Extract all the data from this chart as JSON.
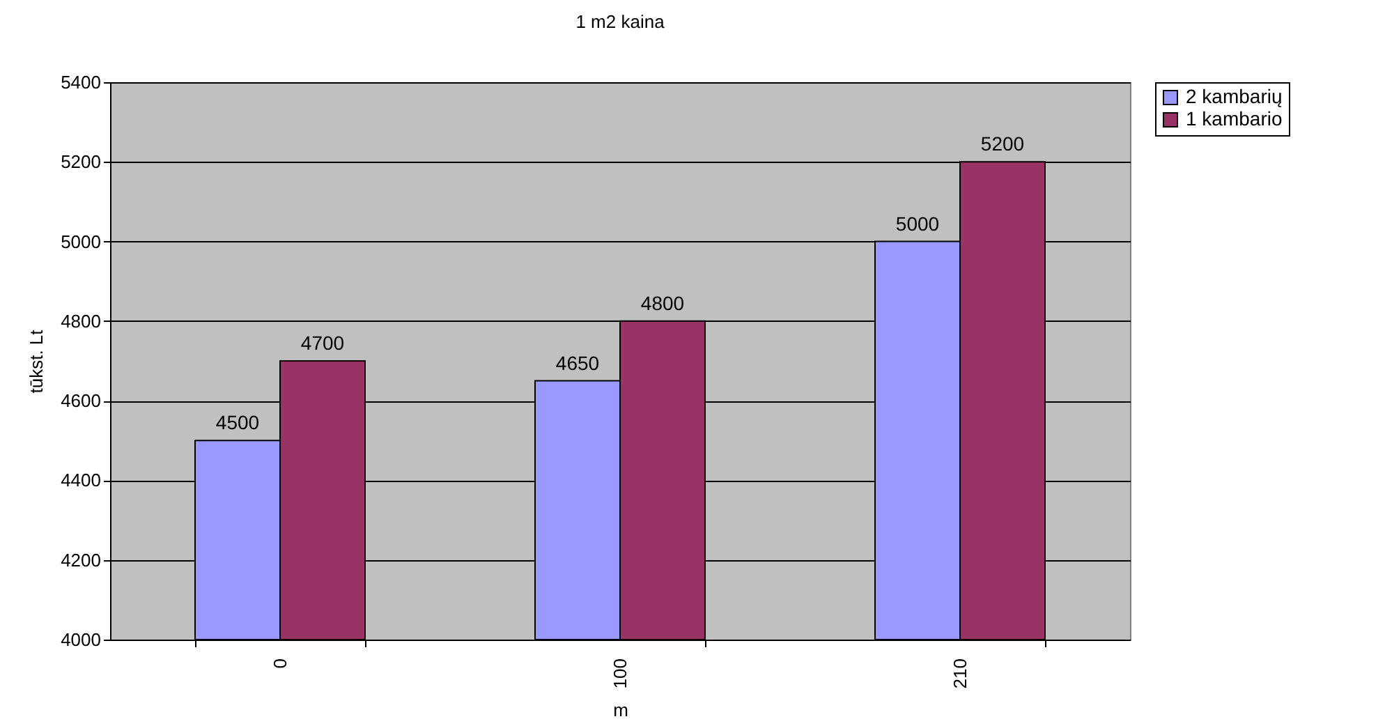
{
  "chart_data": {
    "type": "bar",
    "title": "1 m2 kaina",
    "xlabel": "m",
    "ylabel": "tūkst. Lt",
    "categories": [
      "0",
      "100",
      "210"
    ],
    "series": [
      {
        "name": "2 kambarių",
        "color": "#9999ff",
        "values": [
          4500,
          4650,
          5000
        ]
      },
      {
        "name": "1 kambario",
        "color": "#993366",
        "values": [
          4700,
          4800,
          5200
        ]
      }
    ],
    "ylim": [
      4000,
      5400
    ],
    "yticks": [
      4000,
      4200,
      4400,
      4600,
      4800,
      5000,
      5200,
      5400
    ],
    "grid": "y",
    "legend": "right",
    "data_labels": true
  }
}
